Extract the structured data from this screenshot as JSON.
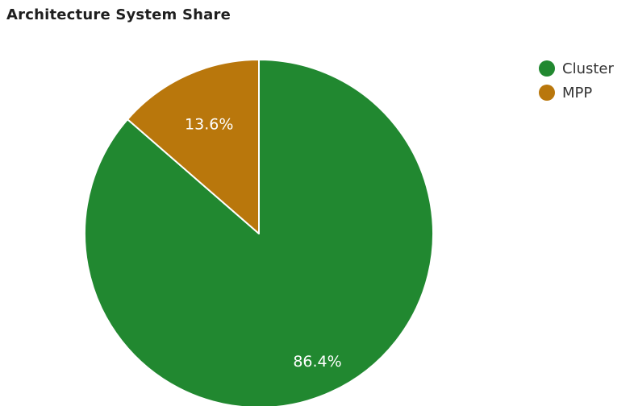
{
  "chart_data": {
    "type": "pie",
    "title": "Architecture System Share",
    "slices": [
      {
        "name": "Cluster",
        "value": 86.4,
        "label": "86.4%",
        "color": "#218830"
      },
      {
        "name": "MPP",
        "value": 13.6,
        "label": "13.6%",
        "color": "#b9770c"
      }
    ],
    "start_angle_deg": 0,
    "direction": "clockwise",
    "legend_position": "top-right"
  }
}
